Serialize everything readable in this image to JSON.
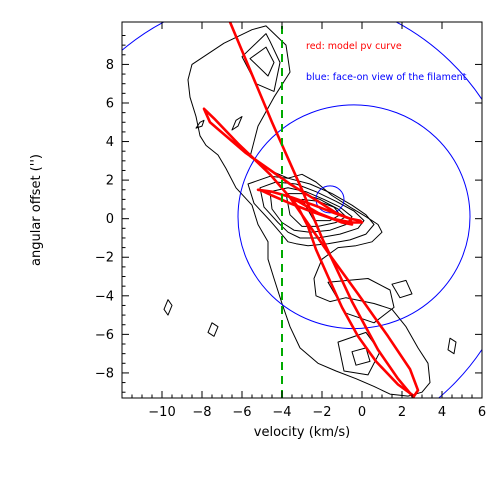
{
  "chart_data": {
    "type": "line",
    "title": "",
    "xlabel": "velocity (km/s)",
    "ylabel": "angular offset ('')",
    "xlim": [
      -12,
      6
    ],
    "ylim": [
      -9.3,
      10.2
    ],
    "x_ticks": [
      -10,
      -8,
      -6,
      -4,
      -2,
      0,
      2,
      4,
      6
    ],
    "y_ticks": [
      -8,
      -6,
      -4,
      -2,
      0,
      2,
      4,
      6,
      8
    ],
    "grid": false,
    "annotations": [
      {
        "text": "red: model pv curve",
        "color": "#ff0000"
      },
      {
        "text": "blue: face-on view of the filament",
        "color": "#0000ff"
      }
    ],
    "series": [
      {
        "style": "dashed-vertical-line",
        "color": "#00aa00",
        "x": [
          -4,
          -4
        ],
        "y": [
          -9.3,
          10.2
        ]
      },
      {
        "style": "line",
        "color": "#ff0000",
        "x": [
          -6.6,
          -4.5,
          -3.0,
          -2.0,
          -0.5,
          0.8,
          1.8,
          2.6
        ],
        "y": [
          10.2,
          5.0,
          1.5,
          -1.0,
          -4.3,
          -6.8,
          -8.3,
          -9.3
        ]
      },
      {
        "style": "closed-loop",
        "color": "#ff0000",
        "x": [
          -7.9,
          -7.6,
          -5.8,
          -3.6,
          -2.2,
          -1.3,
          -0.6,
          -0.5,
          -1.0,
          -2.2,
          -3.2,
          -3.5,
          -3.2,
          -2.7,
          -2.3,
          -1.7,
          -1.0,
          -0.2,
          0.7,
          1.8,
          2.6,
          2.8,
          2.4,
          1.3,
          -0.2,
          -1.6,
          -2.8,
          -3.6,
          -4.6,
          -6.2,
          -7.4,
          -7.9
        ],
        "y": [
          5.7,
          5.0,
          3.4,
          1.8,
          0.9,
          0.3,
          0.0,
          -0.3,
          -0.2,
          0.3,
          0.9,
          1.0,
          0.6,
          -0.4,
          -1.6,
          -3.0,
          -4.6,
          -6.1,
          -7.4,
          -8.6,
          -9.2,
          -8.9,
          -7.8,
          -6.1,
          -3.9,
          -1.9,
          -0.1,
          1.1,
          2.3,
          3.9,
          5.2,
          5.7
        ]
      },
      {
        "style": "closed-loop",
        "color": "#ff0000",
        "x": [
          -5.2,
          -4.5,
          -3.5,
          -2.4,
          -1.4,
          -0.6,
          -0.1,
          0.0,
          -0.5,
          -1.5,
          -2.6,
          -3.6,
          -4.5,
          -5.1,
          -5.2
        ],
        "y": [
          1.5,
          1.4,
          1.1,
          0.7,
          0.3,
          0.0,
          -0.1,
          -0.2,
          -0.2,
          0.0,
          0.4,
          0.8,
          1.2,
          1.5,
          1.5
        ]
      },
      {
        "style": "circle",
        "color": "#0000ff",
        "center": [
          -0.4,
          0.1
        ],
        "radius": 5.8
      },
      {
        "style": "circle",
        "color": "#0000ff",
        "center": [
          -1.6,
          1.0
        ],
        "radius": 0.7
      },
      {
        "style": "circle",
        "color": "#0000ff",
        "center": [
          -4.1,
          -0.3
        ],
        "radius": 12.0
      },
      {
        "style": "contour",
        "color": "#000000",
        "rings": [
          {
            "x": [
              -6.0,
              -4.8,
              -4.6,
              -4.1,
              -4.4,
              -5.3,
              -6.0
            ],
            "y": [
              8.4,
              9.6,
              9.2,
              8.1,
              6.6,
              7.0,
              8.4
            ]
          },
          {
            "x": [
              -5.6,
              -4.8,
              -4.4,
              -4.7,
              -5.6
            ],
            "y": [
              8.3,
              8.9,
              8.1,
              7.4,
              8.3
            ]
          },
          {
            "x": [
              -8.5,
              -6.9,
              -5.5,
              -4.8,
              -3.8,
              -3.6,
              -4.4,
              -5.2,
              -5.6,
              -4.6,
              -3.7,
              -3.0,
              -2.3,
              -1.5,
              -0.6,
              0.2,
              0.8,
              1.0,
              0.5,
              -0.3,
              -1.2,
              -2.0,
              -2.4,
              -2.3,
              -1.6,
              -0.8,
              0.6,
              1.5,
              2.2,
              2.8,
              3.3,
              3.4,
              3.0,
              2.3,
              1.4,
              0.6,
              -0.3,
              -1.3,
              -2.2,
              -3.1,
              -3.6,
              -4.0,
              -4.4,
              -4.7,
              -4.7,
              -5.2,
              -5.5,
              -6.3,
              -6.8,
              -7.2,
              -7.8,
              -8.1,
              -8.3,
              -8.6,
              -8.7,
              -8.5
            ],
            "y": [
              8.0,
              9.1,
              9.8,
              10.0,
              9.0,
              7.6,
              6.3,
              4.8,
              3.2,
              2.5,
              2.1,
              2.3,
              1.9,
              1.2,
              0.6,
              0.1,
              -0.3,
              -0.7,
              -1.2,
              -1.4,
              -1.5,
              -2.1,
              -3.1,
              -4.0,
              -4.3,
              -4.1,
              -4.4,
              -4.7,
              -5.6,
              -6.7,
              -7.5,
              -8.5,
              -9.0,
              -9.2,
              -9.1,
              -8.7,
              -8.3,
              -7.9,
              -7.5,
              -6.7,
              -5.6,
              -4.4,
              -3.1,
              -2.1,
              -1.2,
              -0.3,
              0.7,
              1.6,
              2.6,
              3.3,
              3.8,
              4.3,
              5.3,
              6.3,
              7.2,
              8.0
            ]
          },
          {
            "x": [
              -5.7,
              -4.6,
              -3.7,
              -2.6,
              -1.5,
              -0.5,
              0.2,
              0.6,
              0.2,
              -0.6,
              -1.7,
              -2.7,
              -3.3,
              -3.7,
              -4.1,
              -4.6,
              -5.4,
              -5.7
            ],
            "y": [
              1.8,
              2.2,
              2.1,
              1.8,
              1.3,
              0.7,
              0.2,
              -0.3,
              -0.8,
              -1.1,
              -1.3,
              -1.4,
              -1.3,
              -1.2,
              -0.7,
              -0.1,
              0.8,
              1.8
            ]
          },
          {
            "x": [
              -5.1,
              -4.3,
              -3.3,
              -2.3,
              -1.3,
              -0.4,
              0.1,
              -0.2,
              -1.1,
              -2.2,
              -3.1,
              -3.7,
              -4.2,
              -4.9,
              -5.1
            ],
            "y": [
              1.6,
              1.9,
              1.8,
              1.4,
              0.9,
              0.4,
              -0.1,
              -0.5,
              -0.8,
              -1.0,
              -1.0,
              -0.7,
              -0.2,
              0.6,
              1.6
            ]
          },
          {
            "x": [
              -4.6,
              -3.7,
              -2.8,
              -1.9,
              -1.1,
              -0.5,
              -0.8,
              -1.6,
              -2.6,
              -3.4,
              -4.0,
              -4.5,
              -4.6
            ],
            "y": [
              1.4,
              1.6,
              1.4,
              1.0,
              0.6,
              0.1,
              -0.3,
              -0.6,
              -0.7,
              -0.6,
              -0.2,
              0.5,
              1.4
            ]
          },
          {
            "x": [
              -3.8,
              -3.0,
              -2.1,
              -1.2,
              -0.8,
              -1.3,
              -2.2,
              -3.0,
              -3.6,
              -3.8
            ],
            "y": [
              1.3,
              1.3,
              1.0,
              0.5,
              0.1,
              -0.2,
              -0.4,
              -0.4,
              0.2,
              1.3
            ]
          },
          {
            "x": [
              -3.0,
              -2.2,
              -1.4,
              -1.1,
              -1.6,
              -2.4,
              -3.0
            ],
            "y": [
              1.0,
              0.9,
              0.6,
              0.2,
              -0.1,
              -0.1,
              1.0
            ]
          },
          {
            "x": [
              -1.7,
              0.3,
              1.4,
              1.6,
              0.6,
              -0.8,
              -1.7
            ],
            "y": [
              -3.3,
              -3.1,
              -3.7,
              -4.6,
              -5.4,
              -4.9,
              -3.3
            ]
          },
          {
            "x": [
              -1.2,
              0.2,
              0.9,
              0.3,
              -0.9,
              -1.2
            ],
            "y": [
              -6.4,
              -5.9,
              -6.9,
              -8.1,
              -7.9,
              -6.4
            ]
          },
          {
            "x": [
              -0.5,
              0.2,
              0.4,
              -0.3,
              -0.5
            ],
            "y": [
              -6.9,
              -6.7,
              -7.4,
              -7.6,
              -6.9
            ]
          },
          {
            "x": [
              1.5,
              2.2,
              2.5,
              1.9,
              1.5
            ],
            "y": [
              -3.4,
              -3.2,
              -3.9,
              -4.1,
              -3.4
            ]
          },
          {
            "x": [
              -9.7,
              -9.5,
              -9.7,
              -9.9,
              -9.7
            ],
            "y": [
              -4.2,
              -4.5,
              -5.0,
              -4.7,
              -4.2
            ]
          },
          {
            "x": [
              4.4,
              4.7,
              4.6,
              4.3,
              4.4
            ],
            "y": [
              -6.2,
              -6.4,
              -7.0,
              -6.8,
              -6.2
            ]
          },
          {
            "x": [
              -7.5,
              -7.2,
              -7.4,
              -7.7,
              -7.5
            ],
            "y": [
              -5.4,
              -5.6,
              -6.1,
              -5.9,
              -5.4
            ]
          },
          {
            "x": [
              -6.3,
              -6.0,
              -6.2,
              -6.5,
              -6.3
            ],
            "y": [
              5.1,
              5.3,
              4.8,
              4.6,
              5.1
            ]
          },
          {
            "x": [
              -8.1,
              -7.9,
              -8.0,
              -8.3,
              -8.1
            ],
            "y": [
              5.0,
              5.1,
              4.8,
              4.7,
              5.0
            ]
          }
        ]
      }
    ]
  }
}
